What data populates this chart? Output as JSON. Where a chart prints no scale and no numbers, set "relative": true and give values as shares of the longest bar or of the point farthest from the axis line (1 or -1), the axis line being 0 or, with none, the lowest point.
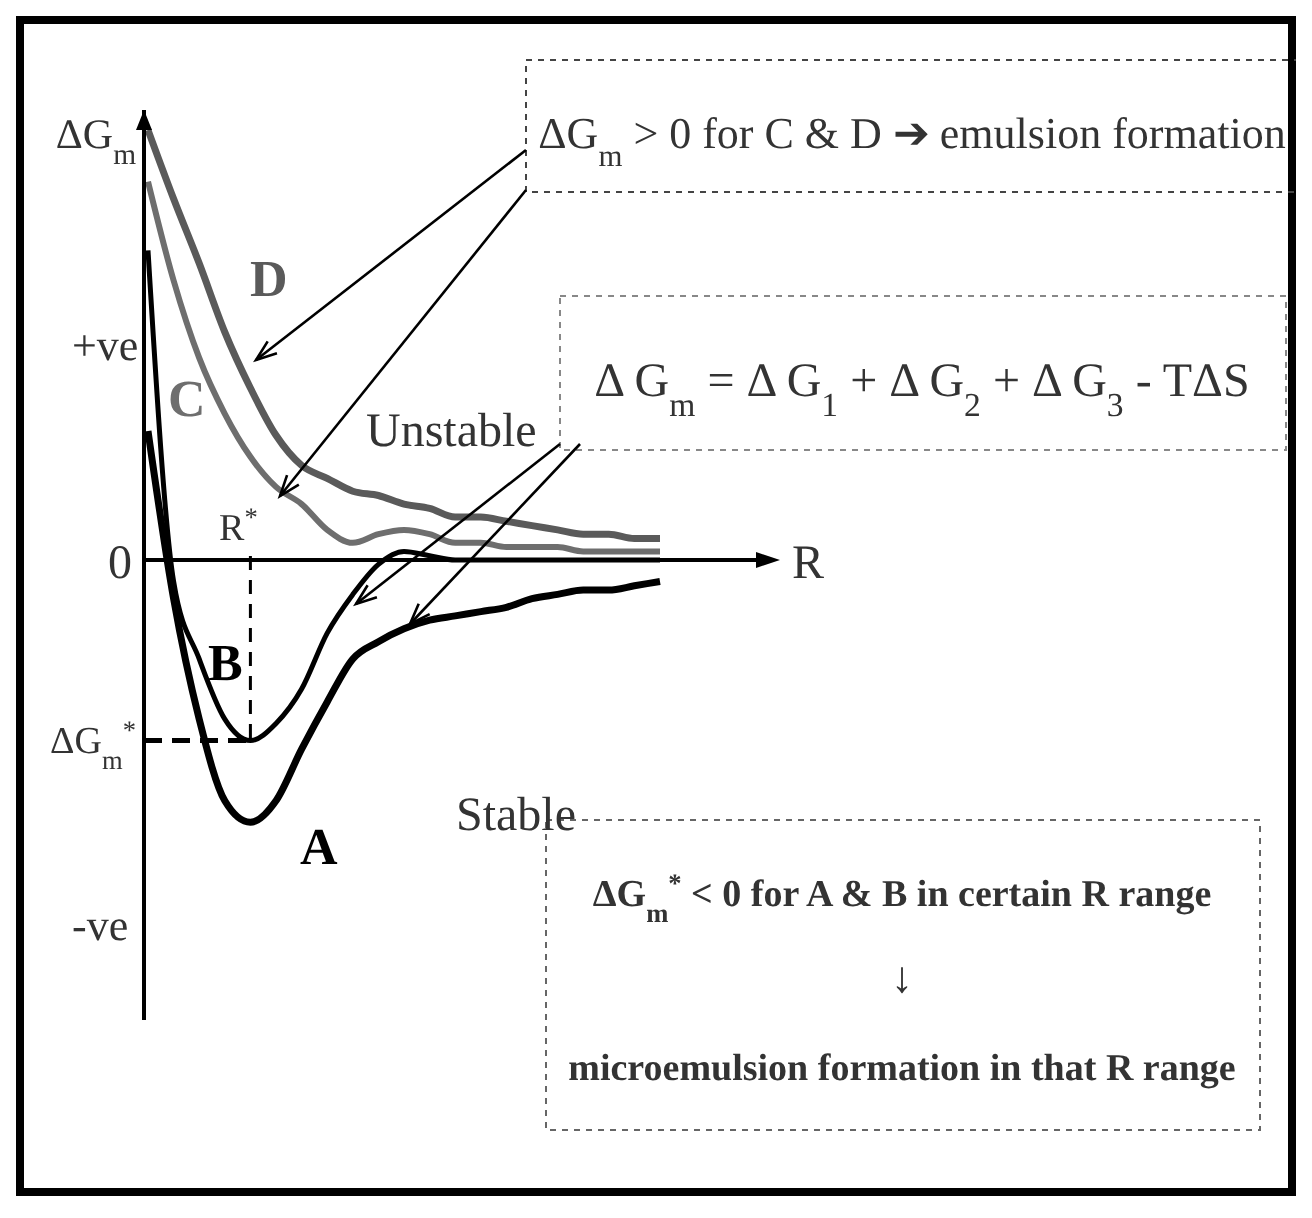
{
  "chart_data": {
    "type": "line",
    "relative": true,
    "xlabel": "R",
    "ylabel": "ΔG$_{m}$",
    "marker": "none",
    "line_style": "solid",
    "categories": [
      null,
      null,
      null,
      null,
      null,
      null,
      null,
      null,
      null,
      null,
      null,
      null,
      null,
      null,
      null,
      null,
      null,
      null,
      null,
      null,
      null
    ],
    "series": [
      {
        "name": "A",
        "color": "#000000",
        "values": [
          0.3,
          -0.09,
          -0.37,
          -0.56,
          -0.61,
          -0.56,
          -0.44,
          -0.33,
          -0.23,
          -0.19,
          -0.16,
          -0.14,
          -0.13,
          -0.12,
          -0.11,
          -0.09,
          -0.08,
          -0.07,
          -0.07,
          -0.06,
          -0.05
        ]
      },
      {
        "name": "B",
        "color": "#000000",
        "values": [
          0.72,
          -0.05,
          -0.23,
          -0.37,
          -0.42,
          -0.38,
          -0.3,
          -0.17,
          -0.08,
          -0.01,
          0.02,
          0.01,
          0,
          0,
          0,
          0,
          0,
          0,
          0,
          0,
          0
        ]
      },
      {
        "name": "C",
        "color": "#6e6e6e",
        "values": [
          0.88,
          0.65,
          0.47,
          0.34,
          0.24,
          0.17,
          0.13,
          0.07,
          0.04,
          0.06,
          0.07,
          0.06,
          0.04,
          0.04,
          0.03,
          0.03,
          0.03,
          0.02,
          0.02,
          0.02,
          0.02
        ]
      },
      {
        "name": "D",
        "color": "#5a5a5a",
        "values": [
          1.0,
          0.84,
          0.69,
          0.53,
          0.4,
          0.29,
          0.22,
          0.19,
          0.16,
          0.15,
          0.13,
          0.12,
          0.1,
          0.1,
          0.09,
          0.08,
          0.07,
          0.06,
          0.06,
          0.05,
          0.05
        ]
      }
    ],
    "annotations": [
      "+ve",
      "0",
      "-ve",
      "ΔG$_{m}$$^{*}$",
      "R$^{*}$",
      "Unstable",
      "Stable",
      "ΔG$_{m}$ > 0 for C & D ➔ emulsion formation",
      "Δ G$_{m}$ = Δ G$_{1}$ + Δ G$_{2}$ + Δ G$_{3}$ - TΔS",
      "ΔG$_{m}$$^{*}$ < 0 for A & B in certain R range",
      "↓",
      "microemulsion formation in that R range"
    ]
  }
}
